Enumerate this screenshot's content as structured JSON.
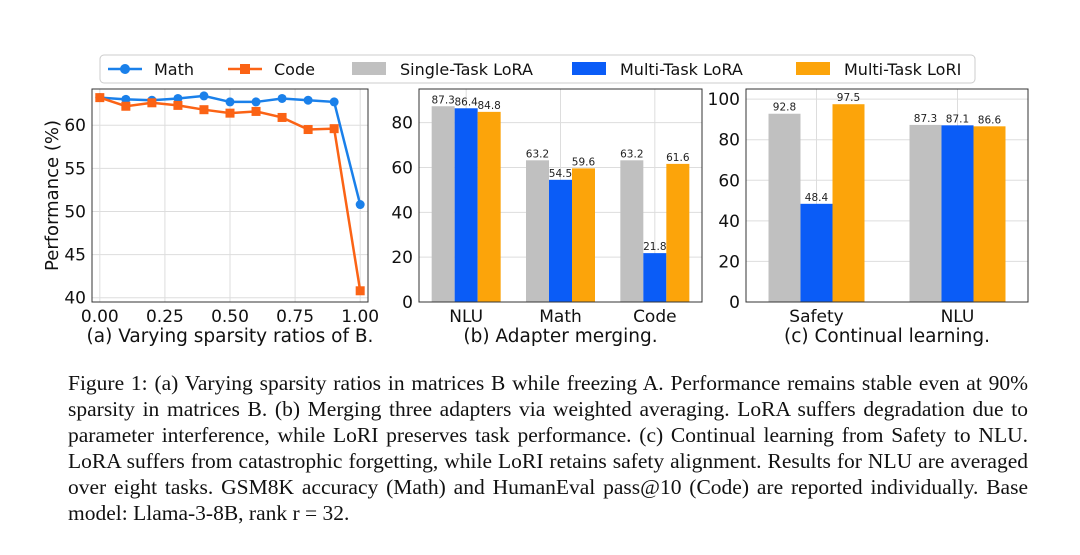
{
  "legend": [
    {
      "label": "Math",
      "color": "#1a80ea",
      "marker": "circle",
      "kind": "line"
    },
    {
      "label": "Code",
      "color": "#fb6315",
      "marker": "square",
      "kind": "line"
    },
    {
      "label": "Single-Task LoRA",
      "color": "#c0c0c0",
      "kind": "bar"
    },
    {
      "label": "Multi-Task LoRA",
      "color": "#0a5cf7",
      "kind": "bar"
    },
    {
      "label": "Multi-Task LoRI",
      "color": "#fca40a",
      "kind": "bar"
    }
  ],
  "chart_data": [
    {
      "type": "line",
      "title": "(a) Varying sparsity ratios of B.",
      "xlabel": "",
      "ylabel": "Performance (%)",
      "xlim": [
        -0.03,
        1.03
      ],
      "ylim": [
        39.5,
        64.2
      ],
      "xticks": [
        "0.00",
        "0.25",
        "0.50",
        "0.75",
        "1.00"
      ],
      "yticks": [
        "40",
        "45",
        "50",
        "55",
        "60"
      ],
      "grid": true,
      "x": [
        0.0,
        0.1,
        0.2,
        0.3,
        0.4,
        0.5,
        0.6,
        0.7,
        0.8,
        0.9,
        1.0
      ],
      "series": [
        {
          "name": "Math",
          "values": [
            63.2,
            63.0,
            62.9,
            63.1,
            63.4,
            62.7,
            62.7,
            63.1,
            62.9,
            62.7,
            50.8
          ]
        },
        {
          "name": "Code",
          "values": [
            63.2,
            62.2,
            62.6,
            62.3,
            61.8,
            61.4,
            61.6,
            60.9,
            59.5,
            59.6,
            40.8
          ]
        }
      ]
    },
    {
      "type": "bar",
      "title": "(b) Adapter merging.",
      "categories": [
        "NLU",
        "Math",
        "Code"
      ],
      "ylim": [
        0,
        95
      ],
      "yticks": [
        "0",
        "20",
        "40",
        "60",
        "80"
      ],
      "grid": true,
      "series": [
        {
          "name": "Single-Task LoRA",
          "values": [
            87.3,
            63.2,
            63.2
          ]
        },
        {
          "name": "Multi-Task LoRA",
          "values": [
            86.4,
            54.5,
            21.8
          ]
        },
        {
          "name": "Multi-Task LoRI",
          "values": [
            84.8,
            59.6,
            61.6
          ]
        }
      ]
    },
    {
      "type": "bar",
      "title": "(c) Continual learning.",
      "categories": [
        "Safety",
        "NLU"
      ],
      "ylim": [
        0,
        105
      ],
      "yticks": [
        "0",
        "20",
        "40",
        "60",
        "80",
        "100"
      ],
      "grid": true,
      "series": [
        {
          "name": "Single-Task LoRA",
          "values": [
            92.8,
            87.3
          ]
        },
        {
          "name": "Multi-Task LoRA",
          "values": [
            48.4,
            87.1
          ]
        },
        {
          "name": "Multi-Task LoRI",
          "values": [
            97.5,
            86.6
          ]
        }
      ]
    }
  ],
  "caption": "Figure 1: (a) Varying sparsity ratios in matrices B while freezing A. Performance remains stable even at 90% sparsity in matrices B. (b) Merging three adapters via weighted averaging. LoRA suffers degradation due to parameter interference, while LoRI preserves task performance. (c) Continual learning from Safety to NLU. LoRA suffers from catastrophic forgetting, while LoRI retains safety alignment. Results for NLU are averaged over eight tasks. GSM8K accuracy (Math) and HumanEval pass@10 (Code) are reported individually. Base model: Llama-3-8B, rank r = 32."
}
